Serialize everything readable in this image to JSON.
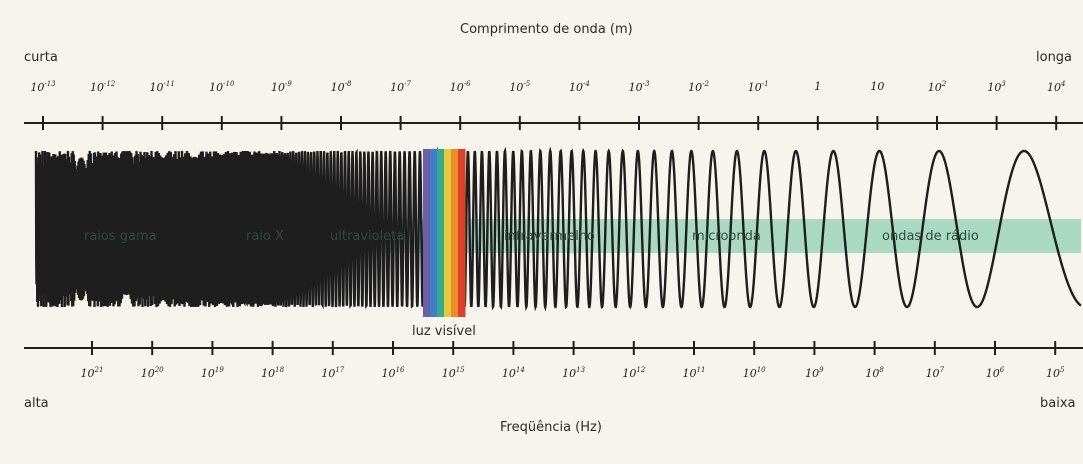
{
  "wavelength_axis": {
    "title": "Comprimento de onda (m)",
    "left_label": "curta",
    "right_label": "longa",
    "ticks": [
      {
        "base": "10",
        "exp": "-13"
      },
      {
        "base": "10",
        "exp": "-12"
      },
      {
        "base": "10",
        "exp": "-11"
      },
      {
        "base": "10",
        "exp": "-10"
      },
      {
        "base": "10",
        "exp": "-9"
      },
      {
        "base": "10",
        "exp": "-8"
      },
      {
        "base": "10",
        "exp": "-7"
      },
      {
        "base": "10",
        "exp": "-6"
      },
      {
        "base": "10",
        "exp": "-5"
      },
      {
        "base": "10",
        "exp": "-4"
      },
      {
        "base": "10",
        "exp": "-3"
      },
      {
        "base": "10",
        "exp": "-2"
      },
      {
        "base": "10",
        "exp": "-1"
      },
      {
        "base": "1",
        "exp": ""
      },
      {
        "base": "10",
        "exp": ""
      },
      {
        "base": "10",
        "exp": "2"
      },
      {
        "base": "10",
        "exp": "3"
      },
      {
        "base": "10",
        "exp": "4"
      }
    ]
  },
  "frequency_axis": {
    "title": "Freqüência (Hz)",
    "left_label": "alta",
    "right_label": "baixa",
    "ticks": [
      {
        "base": "10",
        "exp": "21"
      },
      {
        "base": "10",
        "exp": "20"
      },
      {
        "base": "10",
        "exp": "19"
      },
      {
        "base": "10",
        "exp": "18"
      },
      {
        "base": "10",
        "exp": "17"
      },
      {
        "base": "10",
        "exp": "16"
      },
      {
        "base": "10",
        "exp": "15"
      },
      {
        "base": "10",
        "exp": "14"
      },
      {
        "base": "10",
        "exp": "13"
      },
      {
        "base": "10",
        "exp": "12"
      },
      {
        "base": "10",
        "exp": "11"
      },
      {
        "base": "10",
        "exp": "10"
      },
      {
        "base": "10",
        "exp": "9"
      },
      {
        "base": "10",
        "exp": "8"
      },
      {
        "base": "10",
        "exp": "7"
      },
      {
        "base": "10",
        "exp": "6"
      },
      {
        "base": "10",
        "exp": "5"
      }
    ]
  },
  "bands": {
    "gamma": "raios gama",
    "xray": "raio X",
    "uv": "ultravioleta",
    "ir": "infravermelho",
    "micro": "microonda",
    "radio": "ondas de rádio"
  },
  "visible_light_label": "luz visível",
  "colors": {
    "band_strip": "#a9d9c2",
    "wave": "#1e1e1e",
    "axis": "#1e1e1e",
    "spectrum": [
      "#6b5ea8",
      "#3f7fc7",
      "#39a98e",
      "#e4c93a",
      "#ec8a2c",
      "#d9432c"
    ]
  }
}
